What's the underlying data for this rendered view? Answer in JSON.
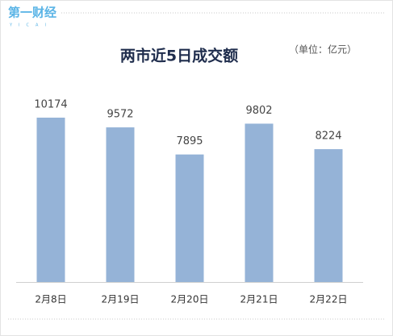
{
  "logo": {
    "name": "第一财经",
    "latin": "YICAI"
  },
  "chart_data": {
    "type": "bar",
    "title": "两市近5日成交额",
    "subtitle": "（单位：亿元）",
    "categories": [
      "2月8日",
      "2月19日",
      "2月20日",
      "2月21日",
      "2月22日"
    ],
    "values": [
      10174,
      9572,
      7895,
      9802,
      8224
    ],
    "color": "#95b3d7",
    "data_labels": true
  }
}
